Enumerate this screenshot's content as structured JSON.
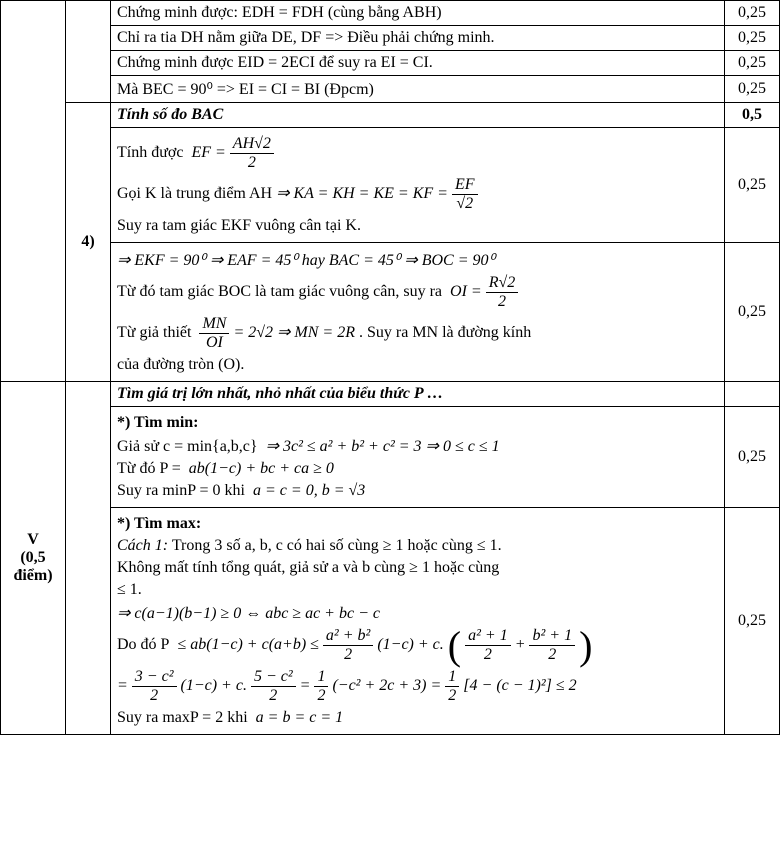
{
  "rows": {
    "r1": {
      "content": "Chứng minh được: EDH = FDH (cùng bằng ABH)",
      "score": "0,25"
    },
    "r2": {
      "content": "Chỉ ra tia DH nằm giữa DE, DF => Điều phải chứng minh.",
      "score": "0,25"
    },
    "r3": {
      "content": "Chứng minh được EID = 2ECI để suy ra EI = CI.",
      "score": "0,25"
    },
    "r4": {
      "content": "Mà BEC = 90⁰ => EI = CI = BI (Đpcm)",
      "score": "0,25"
    },
    "r5": {
      "title": "Tính số đo BAC",
      "score": "0,5"
    },
    "r6": {
      "l1": "Tính được",
      "ef_eq": "EF =",
      "ah_sqrt2": "AH√2",
      "two": "2",
      "l2": "Gọi K là trung điểm AH",
      "ka_chain": "⇒ KA = KH = KE = KF =",
      "ef": "EF",
      "sqrt2": "√2",
      "l3": "Suy ra tam giác EKF vuông cân tại K.",
      "score": "0,25"
    },
    "r7": {
      "l1": "⇒ EKF = 90⁰ ⇒ EAF = 45⁰ hay BAC = 45⁰ ⇒ BOC = 90⁰",
      "l2a": "Từ đó tam giác BOC là tam giác vuông cân, suy ra",
      "oi_eq": "OI =",
      "r_sqrt2": "R√2",
      "two": "2",
      "l3a": "Từ giả thiết",
      "mn": "MN",
      "oi": "OI",
      "eq2sqrt2": "= 2√2 ⇒ MN = 2R",
      "l3b": ". Suy ra MN là đường kính",
      "l4": "của đường tròn (O).",
      "score": "0,25"
    },
    "r8": {
      "title": "Tìm giá trị lớn nhất, nhỏ nhất của biểu thức P …"
    },
    "r9": {
      "h": "*) Tìm min:",
      "l1a": "Giả sử c = min{a,b,c}",
      "l1b": "⇒ 3c² ≤ a² + b² + c² = 3 ⇒ 0 ≤ c ≤ 1",
      "l2a": "Từ đó P =",
      "l2b": "ab(1−c) + bc + ca ≥ 0",
      "l3a": "Suy ra minP = 0 khi",
      "l3b": "a = c = 0, b = √3",
      "score": "0,25"
    },
    "r10": {
      "h": "*) Tìm max:",
      "l1a": "Cách 1:",
      "l1b": "Trong 3 số a, b, c có hai số cùng ≥ 1 hoặc cùng ≤ 1.",
      "l2": "Không mất tính tổng quát, giả sử a và b cùng ≥ 1 hoặc cùng",
      "l3": "≤ 1.",
      "l4": "⇒ c(a−1)(b−1) ≥ 0 ⇔ abc ≥ ac + bc − c",
      "l5a": "Do đó P",
      "l5b": "≤ ab(1−c) + c(a+b) ≤",
      "a2b2": "a² + b²",
      "two": "2",
      "l5c": "(1−c) + c.",
      "a21": "a² + 1",
      "b21": "b² + 1",
      "l6eq": "=",
      "three_c2": "3 − c²",
      "l6b": "(1−c) + c.",
      "five_c2": "5 − c²",
      "l6c": "=",
      "one": "1",
      "l6d": "(−c² + 2c + 3) =",
      "l6e": "[4 − (c − 1)²] ≤ 2",
      "l7a": "Suy ra maxP = 2 khi",
      "l7b": "a = b = c = 1",
      "score": "0,25"
    }
  },
  "labels": {
    "part4": "4)",
    "sectionV": "V",
    "sectionV2": "(0,5",
    "sectionV3": "điểm)"
  }
}
